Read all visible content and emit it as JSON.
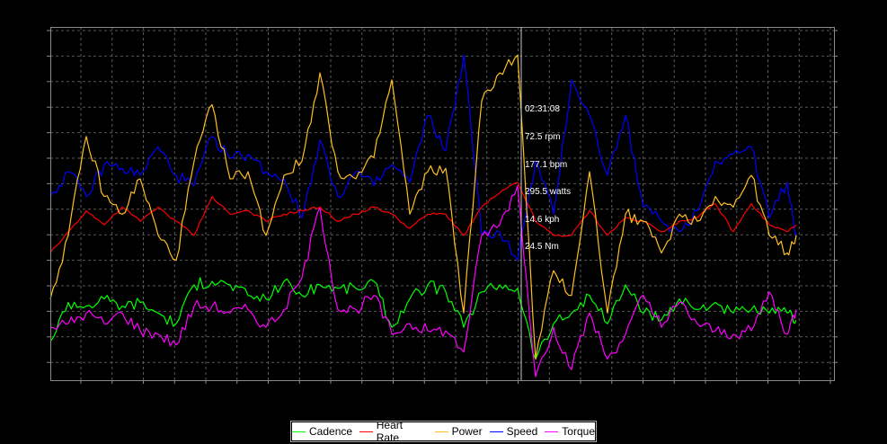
{
  "chart_data": {
    "type": "line",
    "title": "",
    "xlabel": "",
    "ylabel": "",
    "x_note": "sample index (no axis tick labels shown)",
    "x": [
      0,
      1,
      2,
      3,
      4,
      5,
      6,
      7,
      8,
      9,
      10,
      11,
      12,
      13,
      14,
      15,
      16,
      17,
      18,
      19,
      20,
      21,
      22,
      23,
      24,
      25,
      26,
      27,
      28,
      29,
      30,
      31,
      32,
      33,
      34,
      35,
      36,
      37,
      38,
      39,
      40,
      41,
      41.5
    ],
    "ylim": [
      0,
      100
    ],
    "xlim": [
      0,
      43.6
    ],
    "grid": true,
    "legend_position": "bottom-center",
    "series": [
      {
        "name": "Cadence",
        "color": "#00ff00",
        "values": [
          11,
          22,
          21,
          23,
          21,
          22,
          19,
          16,
          27,
          28,
          27,
          24,
          23,
          28,
          24,
          27,
          26,
          26,
          28,
          15,
          23,
          27,
          25,
          15,
          25,
          27,
          26,
          6,
          16,
          19,
          24,
          16,
          27,
          19,
          17,
          23,
          20,
          22,
          19,
          20,
          19,
          19,
          17
        ]
      },
      {
        "name": "Heart Rate",
        "color": "#ff0000",
        "values": [
          36,
          42,
          48,
          44,
          49,
          45,
          49,
          45,
          41,
          52,
          47,
          48,
          45,
          47,
          48,
          49,
          45,
          47,
          49,
          47,
          43,
          47,
          47,
          41,
          49,
          53,
          56,
          45,
          41,
          41,
          48,
          41,
          46,
          45,
          42,
          45,
          46,
          50,
          42,
          50,
          44,
          42,
          44
        ]
      },
      {
        "name": "Power",
        "color": "#ffc020",
        "values": [
          23,
          41,
          69,
          52,
          47,
          57,
          41,
          34,
          62,
          78,
          57,
          59,
          41,
          58,
          62,
          87,
          59,
          57,
          63,
          85,
          47,
          59,
          60,
          19,
          79,
          87,
          92,
          6,
          31,
          24,
          59,
          19,
          47,
          45,
          36,
          47,
          45,
          52,
          49,
          58,
          41,
          36,
          41
        ]
      },
      {
        "name": "Speed",
        "color": "#0000ff",
        "values": [
          52,
          59,
          52,
          61,
          60,
          58,
          66,
          58,
          55,
          69,
          63,
          64,
          59,
          57,
          46,
          68,
          52,
          59,
          55,
          61,
          56,
          75,
          65,
          92,
          41,
          42,
          34,
          62,
          47,
          85,
          75,
          58,
          75,
          49,
          45,
          42,
          48,
          62,
          64,
          66,
          46,
          56,
          41
        ]
      },
      {
        "name": "Torque",
        "color": "#ff00ff",
        "values": [
          15,
          16,
          19,
          16,
          19,
          14,
          13,
          10,
          21,
          21,
          19,
          20,
          15,
          20,
          29,
          49,
          20,
          20,
          24,
          13,
          16,
          14,
          14,
          8,
          41,
          44,
          55,
          1,
          15,
          3,
          19,
          6,
          13,
          24,
          15,
          22,
          16,
          14,
          13,
          14,
          25,
          13,
          20
        ]
      }
    ],
    "cursor": {
      "x_index": 26.2,
      "readout": [
        "02:31:08",
        "72.5 rpm",
        "177.1 bpm",
        "295.5 watts",
        "14.6 kph",
        "24.5 Nm"
      ]
    }
  },
  "legend": {
    "items": [
      {
        "label": "Cadence",
        "color": "#00ff00"
      },
      {
        "label": "Heart Rate",
        "color": "#ff0000"
      },
      {
        "label": "Power",
        "color": "#ffc020"
      },
      {
        "label": "Speed",
        "color": "#0000ff"
      },
      {
        "label": "Torque",
        "color": "#ff00ff"
      }
    ]
  }
}
